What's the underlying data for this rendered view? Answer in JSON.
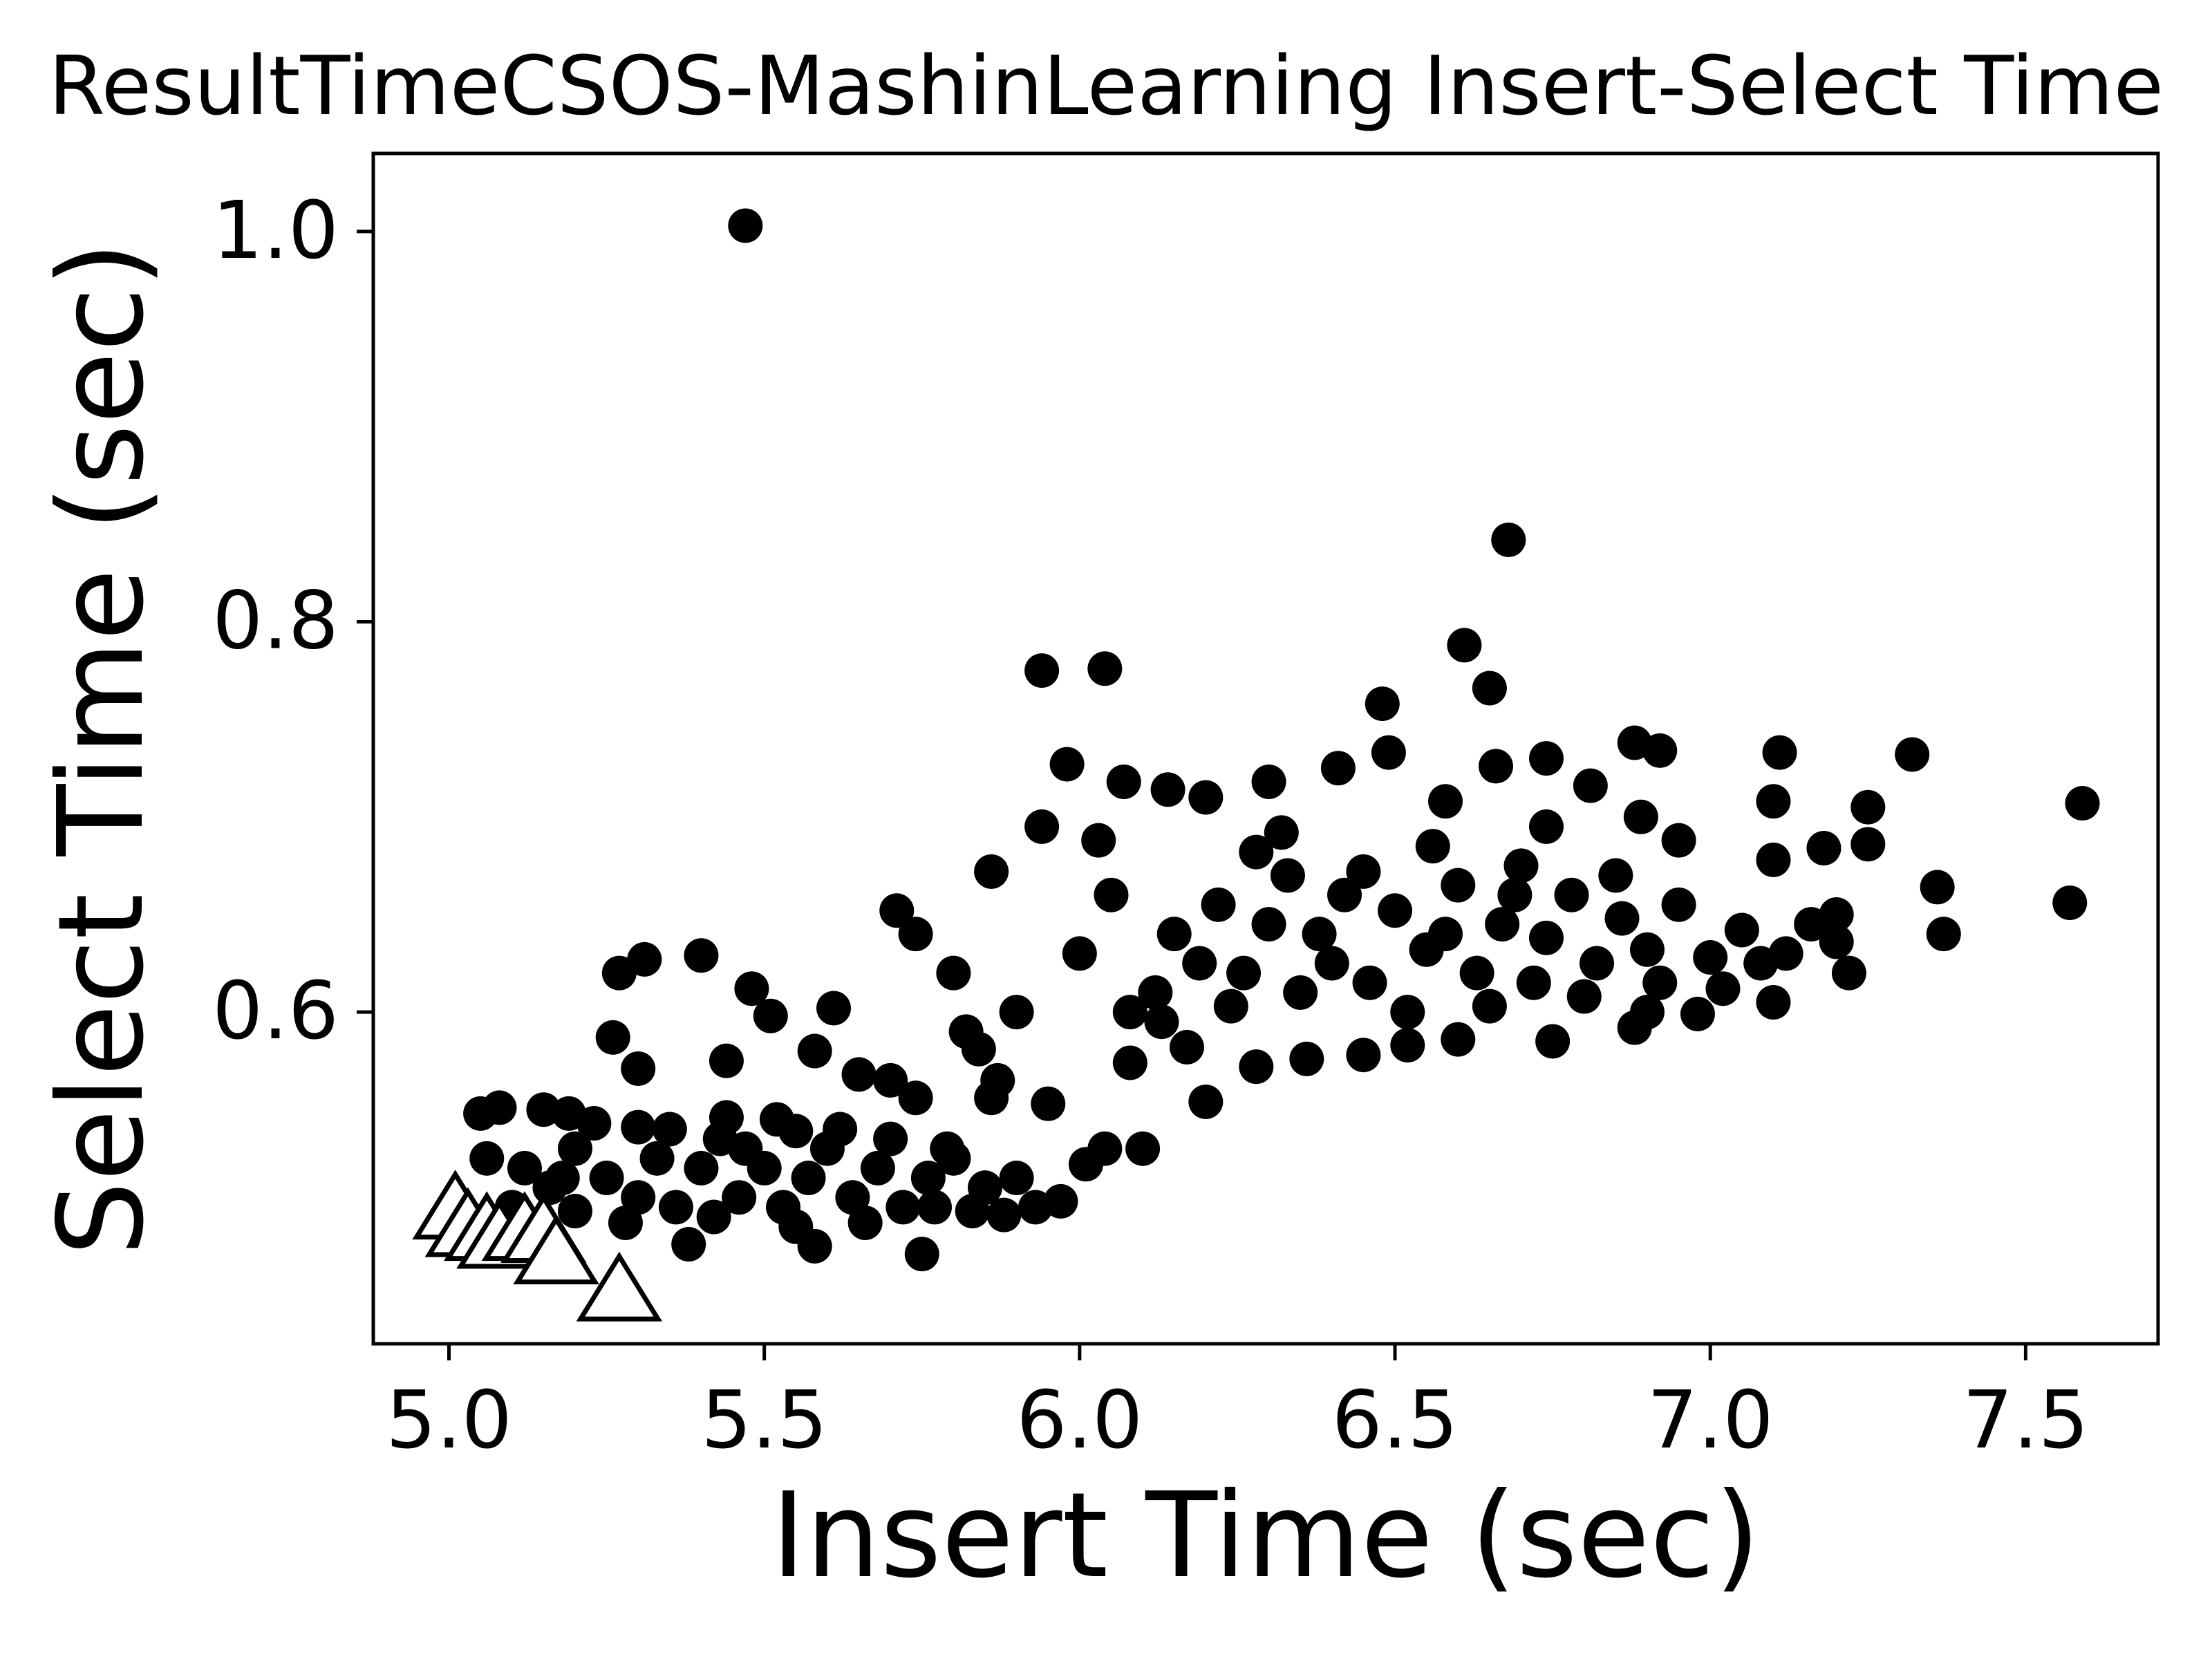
{
  "chart_data": {
    "type": "scatter",
    "title": "ResultTimeCSOS-MashinLearning Insert-Select Time",
    "xlabel": "Insert Time (sec)",
    "ylabel": "Select Time (sec)",
    "xlim": [
      4.88,
      7.71
    ],
    "ylim": [
      0.43,
      1.04
    ],
    "xticks": [
      "5.0",
      "5.5",
      "6.0",
      "6.5",
      "7.0",
      "7.5"
    ],
    "yticks": [
      "0.6",
      "0.8",
      "1.0"
    ],
    "grid": false,
    "legend": "none",
    "marker_color": "#000000",
    "series": [
      {
        "marker": "circle",
        "fill": "#000000",
        "points": [
          [
            5.47,
            1.003
          ],
          [
            6.68,
            0.842
          ],
          [
            6.61,
            0.788
          ],
          [
            6.65,
            0.766
          ],
          [
            5.94,
            0.775
          ],
          [
            6.04,
            0.776
          ],
          [
            6.48,
            0.758
          ],
          [
            5.98,
            0.727
          ],
          [
            6.07,
            0.718
          ],
          [
            6.3,
            0.718
          ],
          [
            6.41,
            0.725
          ],
          [
            6.49,
            0.733
          ],
          [
            6.58,
            0.708
          ],
          [
            6.66,
            0.726
          ],
          [
            6.74,
            0.73
          ],
          [
            6.88,
            0.738
          ],
          [
            6.92,
            0.734
          ],
          [
            7.11,
            0.733
          ],
          [
            7.32,
            0.732
          ],
          [
            7.25,
            0.705
          ],
          [
            7.59,
            0.707
          ],
          [
            7.57,
            0.656
          ],
          [
            7.36,
            0.664
          ],
          [
            7.37,
            0.64
          ],
          [
            7.25,
            0.686
          ],
          [
            7.18,
            0.684
          ],
          [
            7.1,
            0.708
          ],
          [
            7.1,
            0.678
          ],
          [
            6.89,
            0.7
          ],
          [
            6.81,
            0.716
          ],
          [
            6.14,
            0.714
          ],
          [
            6.2,
            0.71
          ],
          [
            5.94,
            0.695
          ],
          [
            5.86,
            0.672
          ],
          [
            6.03,
            0.688
          ],
          [
            5.71,
            0.652
          ],
          [
            5.74,
            0.64
          ],
          [
            5.31,
            0.627
          ],
          [
            5.4,
            0.629
          ],
          [
            5.27,
            0.62
          ],
          [
            5.48,
            0.612
          ],
          [
            5.61,
            0.602
          ],
          [
            5.51,
            0.598
          ],
          [
            5.26,
            0.587
          ],
          [
            5.44,
            0.575
          ],
          [
            5.3,
            0.571
          ],
          [
            5.58,
            0.58
          ],
          [
            5.65,
            0.568
          ],
          [
            5.7,
            0.565
          ],
          [
            5.74,
            0.556
          ],
          [
            5.86,
            0.556
          ],
          [
            5.95,
            0.553
          ],
          [
            6.08,
            0.574
          ],
          [
            6.2,
            0.554
          ],
          [
            6.1,
            0.53
          ],
          [
            6.04,
            0.53
          ],
          [
            6.01,
            0.522
          ],
          [
            5.97,
            0.503
          ],
          [
            5.93,
            0.5
          ],
          [
            5.88,
            0.496
          ],
          [
            5.75,
            0.476
          ],
          [
            5.58,
            0.48
          ],
          [
            5.38,
            0.481
          ],
          [
            5.2,
            0.498
          ],
          [
            5.05,
            0.548
          ],
          [
            5.08,
            0.551
          ],
          [
            5.15,
            0.55
          ],
          [
            5.19,
            0.548
          ],
          [
            5.23,
            0.543
          ],
          [
            5.3,
            0.541
          ],
          [
            5.44,
            0.546
          ],
          [
            5.55,
            0.539
          ],
          [
            6.28,
            0.572
          ],
          [
            6.36,
            0.576
          ],
          [
            6.45,
            0.578
          ],
          [
            6.6,
            0.586
          ],
          [
            6.75,
            0.585
          ],
          [
            6.88,
            0.592
          ],
          [
            6.98,
            0.599
          ],
          [
            7.1,
            0.605
          ],
          [
            7.22,
            0.62
          ],
          [
            7.2,
            0.636
          ],
          [
            7.2,
            0.65
          ],
          [
            6.9,
            0.6
          ],
          [
            6.52,
            0.583
          ],
          [
            6.17,
            0.582
          ],
          [
            5.84,
            0.581
          ],
          [
            5.87,
            0.565
          ],
          [
            6.32,
            0.692
          ],
          [
            6.74,
            0.695
          ],
          [
            6.95,
            0.688
          ],
          [
            6.05,
            0.66
          ],
          [
            5.8,
            0.62
          ],
          [
            6.12,
            0.61
          ],
          [
            6.15,
            0.64
          ],
          [
            6.22,
            0.655
          ],
          [
            6.26,
            0.62
          ],
          [
            6.33,
            0.67
          ],
          [
            6.38,
            0.64
          ],
          [
            6.42,
            0.66
          ],
          [
            6.46,
            0.615
          ],
          [
            6.5,
            0.652
          ],
          [
            6.55,
            0.632
          ],
          [
            6.6,
            0.665
          ],
          [
            6.63,
            0.62
          ],
          [
            6.67,
            0.645
          ],
          [
            6.7,
            0.675
          ],
          [
            6.74,
            0.638
          ],
          [
            6.78,
            0.66
          ],
          [
            6.82,
            0.625
          ],
          [
            6.86,
            0.648
          ],
          [
            6.9,
            0.632
          ],
          [
            6.95,
            0.655
          ],
          [
            7.0,
            0.628
          ],
          [
            7.05,
            0.642
          ],
          [
            7.12,
            0.63
          ],
          [
            7.16,
            0.645
          ],
          [
            6.0,
            0.63
          ],
          [
            5.9,
            0.6
          ],
          [
            5.82,
            0.59
          ],
          [
            6.08,
            0.6
          ],
          [
            6.13,
            0.595
          ],
          [
            6.19,
            0.625
          ],
          [
            6.24,
            0.603
          ],
          [
            6.3,
            0.645
          ],
          [
            6.35,
            0.61
          ],
          [
            6.45,
            0.672
          ],
          [
            6.52,
            0.6
          ],
          [
            6.58,
            0.64
          ],
          [
            6.65,
            0.603
          ],
          [
            6.72,
            0.615
          ],
          [
            6.8,
            0.608
          ],
          [
            6.85,
            0.67
          ],
          [
            6.92,
            0.615
          ],
          [
            7.02,
            0.612
          ],
          [
            7.08,
            0.625
          ],
          [
            6.4,
            0.625
          ],
          [
            6.28,
            0.682
          ],
          [
            6.56,
            0.685
          ],
          [
            6.69,
            0.66
          ],
          [
            5.1,
            0.5
          ],
          [
            5.12,
            0.52
          ],
          [
            5.16,
            0.51
          ],
          [
            5.2,
            0.53
          ],
          [
            5.25,
            0.515
          ],
          [
            5.3,
            0.505
          ],
          [
            5.33,
            0.525
          ],
          [
            5.36,
            0.5
          ],
          [
            5.4,
            0.52
          ],
          [
            5.43,
            0.535
          ],
          [
            5.46,
            0.505
          ],
          [
            5.5,
            0.52
          ],
          [
            5.53,
            0.5
          ],
          [
            5.57,
            0.515
          ],
          [
            5.6,
            0.53
          ],
          [
            5.64,
            0.505
          ],
          [
            5.68,
            0.52
          ],
          [
            5.72,
            0.5
          ],
          [
            5.76,
            0.515
          ],
          [
            5.8,
            0.525
          ],
          [
            5.85,
            0.51
          ],
          [
            5.9,
            0.515
          ],
          [
            5.47,
            0.53
          ],
          [
            5.35,
            0.54
          ],
          [
            5.52,
            0.545
          ],
          [
            5.62,
            0.54
          ],
          [
            5.7,
            0.535
          ],
          [
            5.79,
            0.53
          ],
          [
            5.42,
            0.495
          ],
          [
            5.55,
            0.49
          ],
          [
            5.66,
            0.492
          ],
          [
            5.28,
            0.492
          ],
          [
            5.18,
            0.515
          ],
          [
            5.06,
            0.525
          ],
          [
            5.77,
            0.5
          ],
          [
            5.83,
            0.498
          ]
        ]
      },
      {
        "marker": "triangle",
        "fill": "#ffffff",
        "points": [
          [
            5.01,
            0.497
          ],
          [
            5.03,
            0.488
          ],
          [
            5.06,
            0.486
          ],
          [
            5.08,
            0.482
          ],
          [
            5.12,
            0.486
          ],
          [
            5.15,
            0.485
          ],
          [
            5.17,
            0.474
          ],
          [
            5.27,
            0.455
          ]
        ]
      }
    ]
  }
}
